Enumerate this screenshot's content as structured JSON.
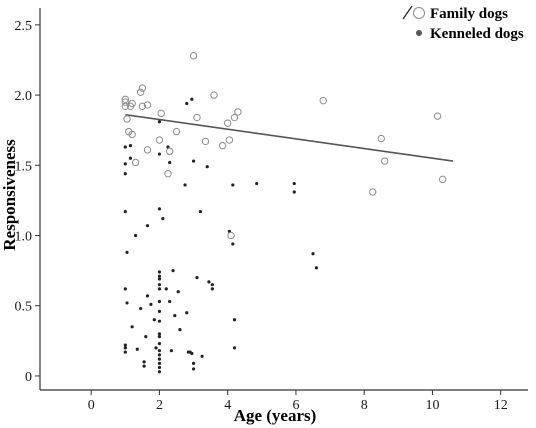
{
  "chart_data": {
    "type": "scatter",
    "xlabel": "Age (years)",
    "ylabel": "Responsiveness",
    "xlim": [
      -1.5,
      12.8
    ],
    "ylim": [
      -0.1,
      2.62
    ],
    "x_ticks": [
      0,
      2,
      4,
      6,
      8,
      10,
      12
    ],
    "y_ticks": [
      0,
      0.5,
      1.0,
      1.5,
      2.0,
      2.5
    ],
    "x_tick_labels": [
      "0",
      "2",
      "4",
      "6",
      "8",
      "10",
      "12"
    ],
    "y_tick_labels": [
      "0",
      "0.5",
      "1.0",
      "1.5",
      "2.0",
      "2.5"
    ],
    "grid": false,
    "legend_position": "top-right",
    "series": [
      {
        "name": "Family dogs",
        "marker": "open-circle",
        "color": "#8c8c8c",
        "points": [
          [
            1.0,
            1.97
          ],
          [
            1.0,
            1.95
          ],
          [
            1.0,
            1.92
          ],
          [
            1.05,
            1.83
          ],
          [
            1.1,
            1.74
          ],
          [
            1.2,
            1.72
          ],
          [
            1.15,
            1.92
          ],
          [
            1.2,
            1.94
          ],
          [
            1.3,
            1.52
          ],
          [
            1.45,
            2.02
          ],
          [
            1.5,
            2.05
          ],
          [
            1.5,
            1.92
          ],
          [
            1.65,
            1.93
          ],
          [
            1.65,
            1.61
          ],
          [
            2.05,
            1.87
          ],
          [
            2.0,
            1.68
          ],
          [
            2.25,
            1.44
          ],
          [
            2.3,
            1.6
          ],
          [
            2.5,
            1.74
          ],
          [
            3.0,
            2.28
          ],
          [
            3.1,
            1.84
          ],
          [
            3.35,
            1.67
          ],
          [
            3.6,
            2.0
          ],
          [
            3.85,
            1.64
          ],
          [
            4.0,
            1.8
          ],
          [
            4.05,
            1.68
          ],
          [
            4.1,
            1.0
          ],
          [
            4.2,
            1.84
          ],
          [
            4.3,
            1.88
          ],
          [
            6.8,
            1.96
          ],
          [
            8.25,
            1.31
          ],
          [
            8.5,
            1.69
          ],
          [
            8.6,
            1.53
          ],
          [
            10.15,
            1.85
          ],
          [
            10.3,
            1.4
          ]
        ]
      },
      {
        "name": "Kenneled dogs",
        "marker": "filled-dot",
        "color": "#222222",
        "points": [
          [
            1.0,
            1.63
          ],
          [
            1.0,
            1.51
          ],
          [
            1.0,
            1.44
          ],
          [
            1.0,
            1.17
          ],
          [
            1.05,
            0.88
          ],
          [
            1.0,
            0.62
          ],
          [
            1.05,
            0.52
          ],
          [
            1.0,
            0.22
          ],
          [
            1.0,
            0.2
          ],
          [
            1.0,
            0.17
          ],
          [
            1.15,
            1.64
          ],
          [
            1.15,
            1.55
          ],
          [
            1.2,
            0.35
          ],
          [
            1.3,
            1.0
          ],
          [
            1.35,
            0.19
          ],
          [
            1.45,
            0.48
          ],
          [
            1.55,
            0.1
          ],
          [
            1.55,
            0.07
          ],
          [
            1.6,
            0.28
          ],
          [
            1.65,
            1.07
          ],
          [
            1.65,
            0.57
          ],
          [
            1.75,
            0.51
          ],
          [
            1.85,
            0.4
          ],
          [
            1.9,
            0.2
          ],
          [
            2.0,
            1.81
          ],
          [
            2.0,
            1.58
          ],
          [
            2.0,
            1.19
          ],
          [
            2.0,
            0.74
          ],
          [
            2.0,
            0.71
          ],
          [
            2.0,
            0.69
          ],
          [
            2.0,
            0.65
          ],
          [
            2.0,
            0.62
          ],
          [
            2.0,
            0.53
          ],
          [
            2.0,
            0.46
          ],
          [
            2.0,
            0.39
          ],
          [
            2.0,
            0.3
          ],
          [
            2.0,
            0.28
          ],
          [
            2.0,
            0.23
          ],
          [
            2.0,
            0.18
          ],
          [
            2.0,
            0.15
          ],
          [
            2.0,
            0.12
          ],
          [
            2.0,
            0.09
          ],
          [
            2.0,
            0.06
          ],
          [
            2.0,
            0.03
          ],
          [
            2.1,
            1.12
          ],
          [
            2.2,
            0.62
          ],
          [
            2.25,
            1.63
          ],
          [
            2.3,
            1.52
          ],
          [
            2.3,
            0.53
          ],
          [
            2.35,
            0.18
          ],
          [
            2.4,
            0.75
          ],
          [
            2.45,
            0.43
          ],
          [
            2.55,
            0.6
          ],
          [
            2.6,
            0.33
          ],
          [
            2.75,
            1.36
          ],
          [
            2.8,
            1.94
          ],
          [
            2.8,
            0.45
          ],
          [
            2.85,
            0.17
          ],
          [
            2.9,
            0.17
          ],
          [
            2.95,
            1.97
          ],
          [
            2.95,
            0.16
          ],
          [
            3.0,
            1.53
          ],
          [
            3.0,
            0.09
          ],
          [
            3.0,
            0.05
          ],
          [
            3.1,
            0.7
          ],
          [
            3.2,
            1.17
          ],
          [
            3.25,
            0.14
          ],
          [
            3.4,
            1.49
          ],
          [
            3.45,
            0.67
          ],
          [
            3.55,
            0.65
          ],
          [
            3.55,
            0.62
          ],
          [
            4.05,
            1.03
          ],
          [
            4.15,
            1.36
          ],
          [
            4.15,
            0.94
          ],
          [
            4.2,
            0.4
          ],
          [
            4.2,
            0.2
          ],
          [
            4.85,
            1.37
          ],
          [
            5.95,
            1.37
          ],
          [
            5.95,
            1.31
          ],
          [
            6.5,
            0.87
          ],
          [
            6.6,
            0.77
          ]
        ]
      }
    ],
    "trendline": {
      "series": "Family dogs",
      "x": [
        1.0,
        10.6
      ],
      "y": [
        1.86,
        1.53
      ],
      "color": "#555555"
    }
  }
}
